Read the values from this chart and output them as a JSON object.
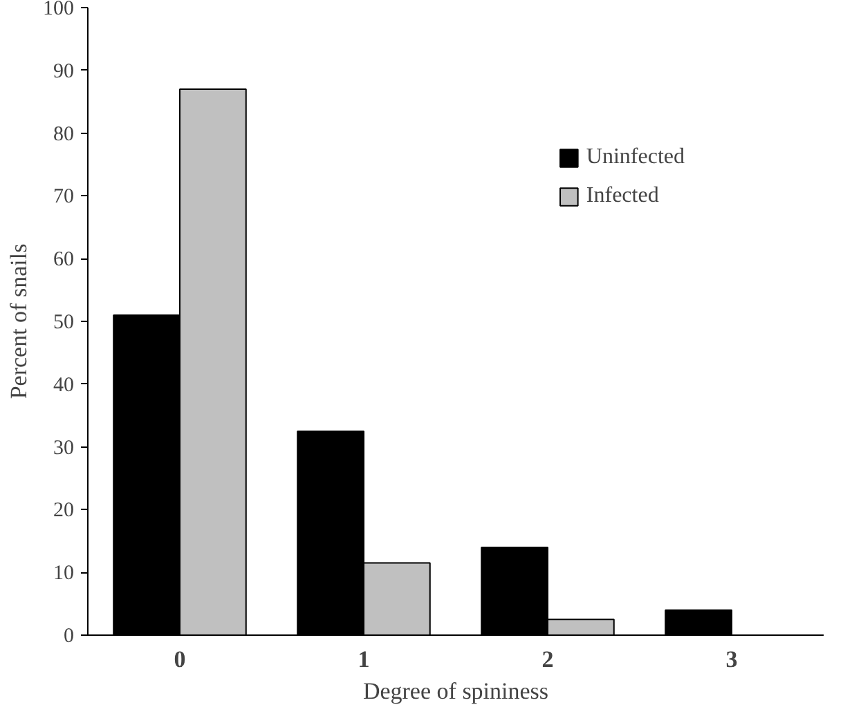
{
  "chart_data": {
    "type": "bar",
    "xlabel": "Degree of spininess",
    "ylabel": "Percent of snails",
    "categories": [
      "0",
      "1",
      "2",
      "3"
    ],
    "series": [
      {
        "name": "Uninfected",
        "color": "#000000",
        "values": [
          51,
          32.5,
          14,
          4
        ]
      },
      {
        "name": "Infected",
        "color": "#c0c0c0",
        "values": [
          87,
          11.5,
          2.5,
          null
        ]
      }
    ],
    "ylim": [
      0,
      100
    ],
    "yticks": [
      0,
      10,
      20,
      30,
      40,
      50,
      60,
      70,
      80,
      90,
      100
    ],
    "grid": false,
    "legend": "top right"
  }
}
